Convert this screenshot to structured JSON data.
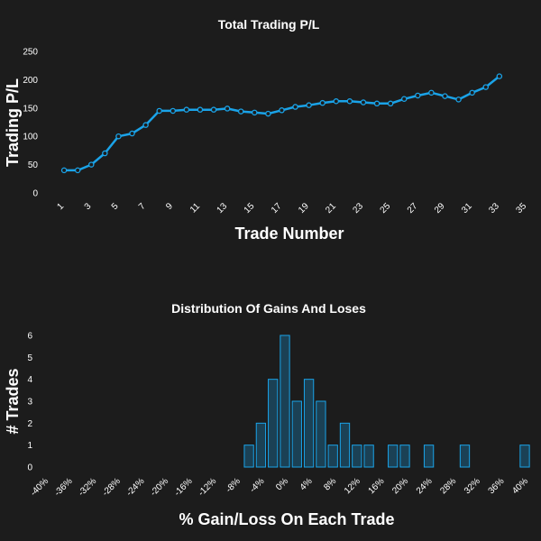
{
  "chart_data": [
    {
      "type": "line",
      "title": "Total Trading P/L",
      "xlabel": "Trade Number",
      "ylabel": "Trading P/L",
      "xlim": [
        0,
        35
      ],
      "ylim": [
        0,
        250
      ],
      "x_ticks": [
        "1",
        "3",
        "5",
        "7",
        "9",
        "11",
        "13",
        "15",
        "17",
        "19",
        "21",
        "23",
        "25",
        "27",
        "29",
        "31",
        "33",
        "35"
      ],
      "y_ticks": [
        "0",
        "50",
        "100",
        "150",
        "200",
        "250"
      ],
      "grid": false,
      "color": "#1aa3e8",
      "series": [
        {
          "x": [
            1,
            2,
            3,
            4,
            5,
            6,
            7,
            8,
            9,
            10,
            11,
            12,
            13,
            14,
            15,
            16,
            17,
            18,
            19,
            20,
            21,
            22,
            23,
            24,
            25,
            26,
            27,
            28,
            29,
            30,
            31,
            32,
            33
          ],
          "values": [
            40,
            40,
            50,
            70,
            100,
            105,
            120,
            145,
            145,
            147,
            147,
            147,
            149,
            144,
            142,
            140,
            146,
            152,
            155,
            159,
            162,
            162,
            160,
            158,
            158,
            166,
            172,
            177,
            171,
            165,
            177,
            187,
            206
          ]
        }
      ]
    },
    {
      "type": "bar",
      "title": "Distribution Of Gains And Loses",
      "xlabel": "% Gain/Loss On Each Trade",
      "ylabel": "# Trades",
      "xlim": [
        -40,
        40
      ],
      "ylim": [
        0,
        6
      ],
      "x_ticks": [
        "-40%",
        "-36%",
        "-32%",
        "-28%",
        "-24%",
        "-20%",
        "-16%",
        "-12%",
        "-8%",
        "-4%",
        "0%",
        "4%",
        "8%",
        "12%",
        "16%",
        "20%",
        "24%",
        "28%",
        "32%",
        "36%",
        "40%"
      ],
      "y_ticks": [
        "0",
        "1",
        "2",
        "3",
        "4",
        "5",
        "6"
      ],
      "grid": false,
      "bin_width": 2,
      "color": "#1aa3e8",
      "bins": [
        {
          "x": -6,
          "count": 1
        },
        {
          "x": -4,
          "count": 2
        },
        {
          "x": -2,
          "count": 4
        },
        {
          "x": 0,
          "count": 6
        },
        {
          "x": 2,
          "count": 3
        },
        {
          "x": 4,
          "count": 4
        },
        {
          "x": 6,
          "count": 3
        },
        {
          "x": 8,
          "count": 1
        },
        {
          "x": 10,
          "count": 2
        },
        {
          "x": 12,
          "count": 1
        },
        {
          "x": 14,
          "count": 1
        },
        {
          "x": 18,
          "count": 1
        },
        {
          "x": 20,
          "count": 1
        },
        {
          "x": 24,
          "count": 1
        },
        {
          "x": 30,
          "count": 1
        },
        {
          "x": 40,
          "count": 1
        }
      ]
    }
  ]
}
